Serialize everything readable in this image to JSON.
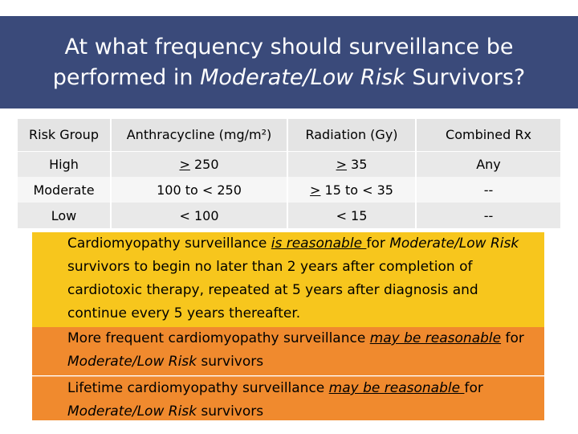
{
  "title": {
    "line1": "At what frequency should surveillance be",
    "line2_prefix": "performed in ",
    "line2_em": "Moderate/Low Risk",
    "line2_suffix": " Survivors?"
  },
  "table": {
    "headers": [
      "Risk Group",
      "Anthracycline (mg/m²)",
      "Radiation (Gy)",
      "Combined  Rx"
    ],
    "rows": [
      {
        "group": "High",
        "anth_prefix": "",
        "anth_ul": ">",
        "anth_rest": " 250",
        "rad_ul": ">",
        "rad_rest": " 35",
        "comb": "Any"
      },
      {
        "group": "Moderate",
        "anth_prefix": "100 to < 250",
        "anth_ul": "",
        "anth_rest": "",
        "rad_ul": ">",
        "rad_rest": " 15 to < 35",
        "comb": "--"
      },
      {
        "group": "Low",
        "anth_prefix": "< 100",
        "anth_ul": "",
        "anth_rest": "",
        "rad_ul": "",
        "rad_rest": "< 15",
        "comb": "--"
      }
    ]
  },
  "recommendations": {
    "r1": {
      "a": "Cardiomyopathy surveillance ",
      "b": "is reasonable ",
      "c": "for ",
      "d": "Moderate/Low Risk",
      "e": " survivors to begin no later than 2 years after completion of cardiotoxic therapy,  repeated at 5 years after diagnosis and continue every 5 years thereafter."
    },
    "r2": {
      "a": "More frequent cardiomyopathy surveillance ",
      "b": "may be reasonable",
      "c": " for ",
      "d": "Moderate/Low Risk",
      "e": " survivors"
    },
    "r3": {
      "a": "Lifetime cardiomyopathy surveillance ",
      "b": "may be reasonable ",
      "c": "for ",
      "d": "Moderate/Low Risk",
      "e": " survivors"
    }
  },
  "colors": {
    "title_bg": "#3a4a7a",
    "rec_yellow": "#f7c61d",
    "rec_orange": "#f08a2e"
  }
}
